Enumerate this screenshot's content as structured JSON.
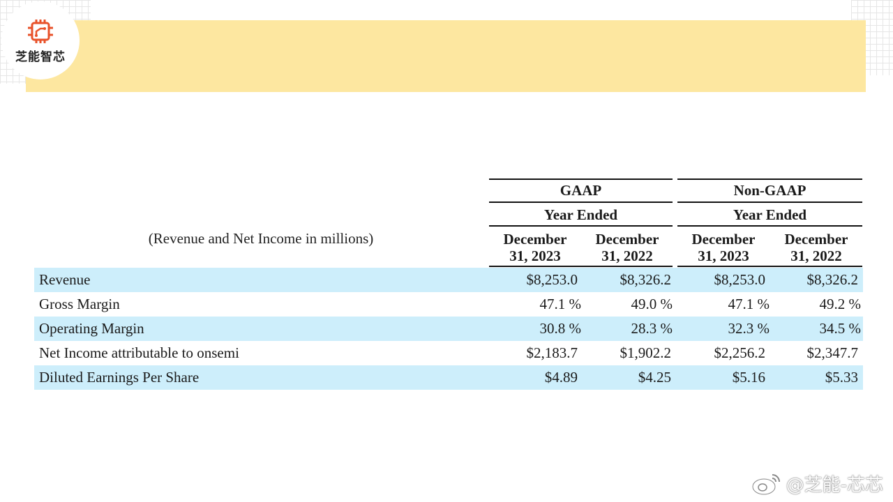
{
  "brand": {
    "logo_text": "芝能智芯",
    "watermark_text": "@芝能-芯芯",
    "accent_color": "#e8522a",
    "banner_color": "#fde7a0",
    "row_shade_color": "#cdeefb"
  },
  "table": {
    "caption": "(Revenue and Net Income in millions)",
    "groups": [
      {
        "title": "GAAP",
        "subtitle": "Year Ended"
      },
      {
        "title": "Non-GAAP",
        "subtitle": "Year Ended"
      }
    ],
    "columns": [
      {
        "line1": "December",
        "line2": "31, 2023"
      },
      {
        "line1": "December",
        "line2": "31, 2022"
      },
      {
        "line1": "December",
        "line2": "31, 2023"
      },
      {
        "line1": "December",
        "line2": "31, 2022"
      }
    ],
    "rows": [
      {
        "label": "Revenue",
        "values": [
          "$8,253.0",
          "$8,326.2",
          "$8,253.0",
          "$8,326.2"
        ]
      },
      {
        "label": "Gross Margin",
        "values": [
          "47.1 %",
          "49.0 %",
          "47.1 %",
          "49.2 %"
        ]
      },
      {
        "label": "Operating Margin",
        "values": [
          "30.8 %",
          "28.3 %",
          "32.3 %",
          "34.5 %"
        ]
      },
      {
        "label": "Net Income attributable to onsemi",
        "values": [
          "$2,183.7",
          "$1,902.2",
          "$2,256.2",
          "$2,347.7"
        ]
      },
      {
        "label": "Diluted Earnings Per Share",
        "values": [
          "$4.89",
          "$4.25",
          "$5.16",
          "$5.33"
        ]
      }
    ]
  }
}
